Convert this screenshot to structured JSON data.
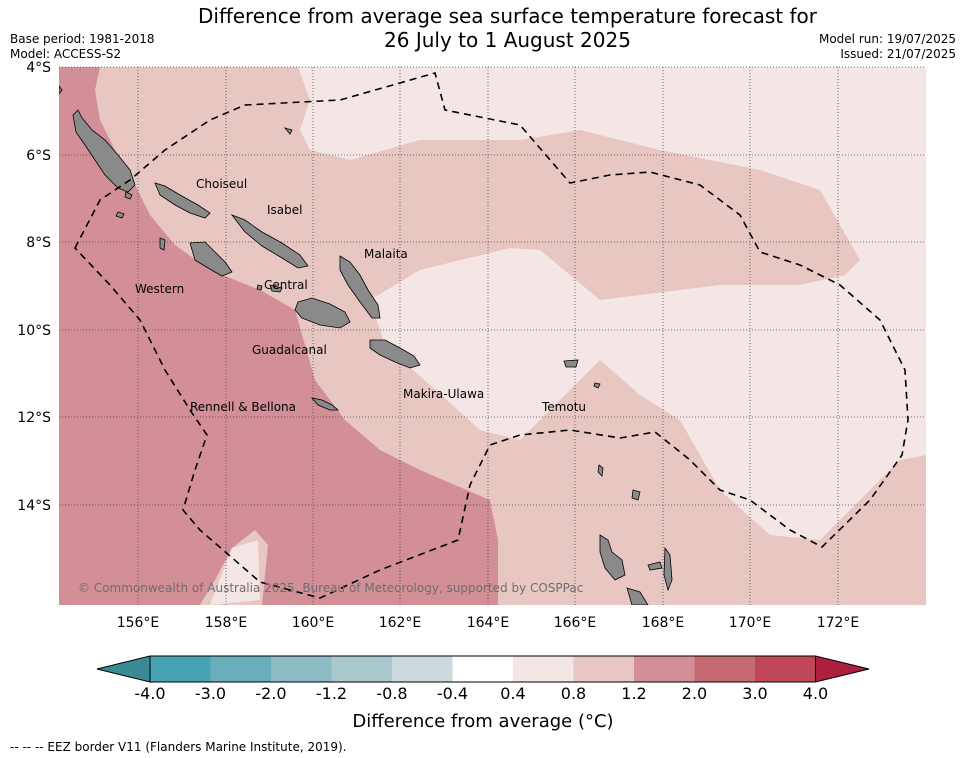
{
  "title_line1": "Difference from average sea surface temperature forecast for",
  "title_line2": "26 July to 1 August 2025",
  "meta": {
    "base_period": "Base period: 1981-2018",
    "model": "Model: ACCESS-S2",
    "model_run": "Model run: 19/07/2025",
    "issued": "Issued: 21/07/2025"
  },
  "map": {
    "lat_labels": [
      "4°S",
      "6°S",
      "8°S",
      "10°S",
      "12°S",
      "14°S"
    ],
    "lon_labels": [
      "156°E",
      "158°E",
      "160°E",
      "162°E",
      "164°E",
      "166°E",
      "168°E",
      "170°E",
      "172°E"
    ],
    "places": {
      "choiseul": "Choiseul",
      "isabel": "Isabel",
      "malaita": "Malaita",
      "western": "Western",
      "central": "Central",
      "guadalcanal": "Guadalcanal",
      "makira": "Makira-Ulawa",
      "temotu": "Temotu",
      "rennell": "Rennell & Bellona"
    },
    "copyright": "© Commonwealth of Australia 2025, Bureau of Meteorology, supported by COSPPac",
    "land_color": "#8a8a8a",
    "eez_color": "#000000"
  },
  "colorbar": {
    "title": "Difference from average (°C)",
    "tick_labels": [
      "-4.0",
      "-3.0",
      "-2.0",
      "-1.2",
      "-0.8",
      "-0.4",
      "0.4",
      "0.8",
      "1.2",
      "2.0",
      "3.0",
      "4.0"
    ],
    "colors": [
      "#3a8a96",
      "#46a3b4",
      "#6aaebc",
      "#8bbcc6",
      "#a9c8cd",
      "#c9d9dc",
      "#ffffff",
      "#f5e6e6",
      "#e8c7c3",
      "#d38f98",
      "#c76973",
      "#bf4757",
      "#ac1f3d"
    ]
  },
  "footnote": "--  --  -- EEZ border V11 (Flanders Marine Institute, 2019)."
}
